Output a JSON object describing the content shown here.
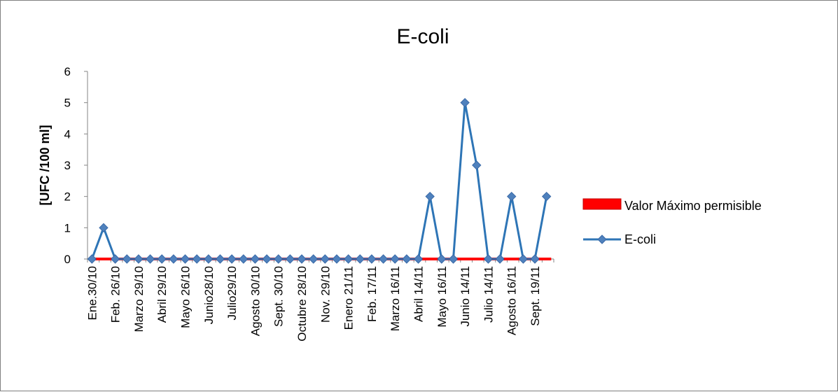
{
  "chart_data": {
    "type": "line",
    "title": "E-coli",
    "xlabel": "",
    "ylabel": "[UFC /100 ml]",
    "ylim": [
      0,
      6
    ],
    "yticks": [
      "0",
      "1",
      "2",
      "3",
      "4",
      "5",
      "6"
    ],
    "grid": false,
    "legend_position": "right",
    "categories": [
      "Ene.30/10",
      "",
      "Feb. 26/10",
      "",
      "Marzo 29/10",
      "",
      "Abril 29/10",
      "",
      "Mayo 26/10",
      "",
      "Junio28/10",
      "",
      "Julio29/10",
      "",
      "Agosto 30/10",
      "",
      "Sept. 30/10",
      "",
      "Octubre 28/10",
      "",
      "Nov. 29/10",
      "",
      "Enero 21/11",
      "",
      "Feb. 17/11",
      "",
      "Marzo 16/11",
      "",
      "Abril 14/11",
      "",
      "Mayo 16/11",
      "",
      "Junio 14/11",
      "",
      "Julio 14/11",
      "",
      "Agosto 16/11",
      "",
      "Sept. 19/11",
      ""
    ],
    "series": [
      {
        "name": "Valor Máximo permisible",
        "kind": "bar-line",
        "color": "#ff0000",
        "values": [
          0,
          0,
          0,
          0,
          0,
          0,
          0,
          0,
          0,
          0,
          0,
          0,
          0,
          0,
          0,
          0,
          0,
          0,
          0,
          0,
          0,
          0,
          0,
          0,
          0,
          0,
          0,
          0,
          0,
          0,
          0,
          0,
          0,
          0,
          0,
          0,
          0,
          0,
          0,
          0
        ]
      },
      {
        "name": "E-coli",
        "kind": "line-marker",
        "color": "#2e75b6",
        "values": [
          0,
          1,
          0,
          0,
          0,
          0,
          0,
          0,
          0,
          0,
          0,
          0,
          0,
          0,
          0,
          0,
          0,
          0,
          0,
          0,
          0,
          0,
          0,
          0,
          0,
          0,
          0,
          0,
          0,
          2,
          0,
          0,
          5,
          3,
          0,
          0,
          2,
          0,
          0,
          2
        ]
      }
    ]
  }
}
